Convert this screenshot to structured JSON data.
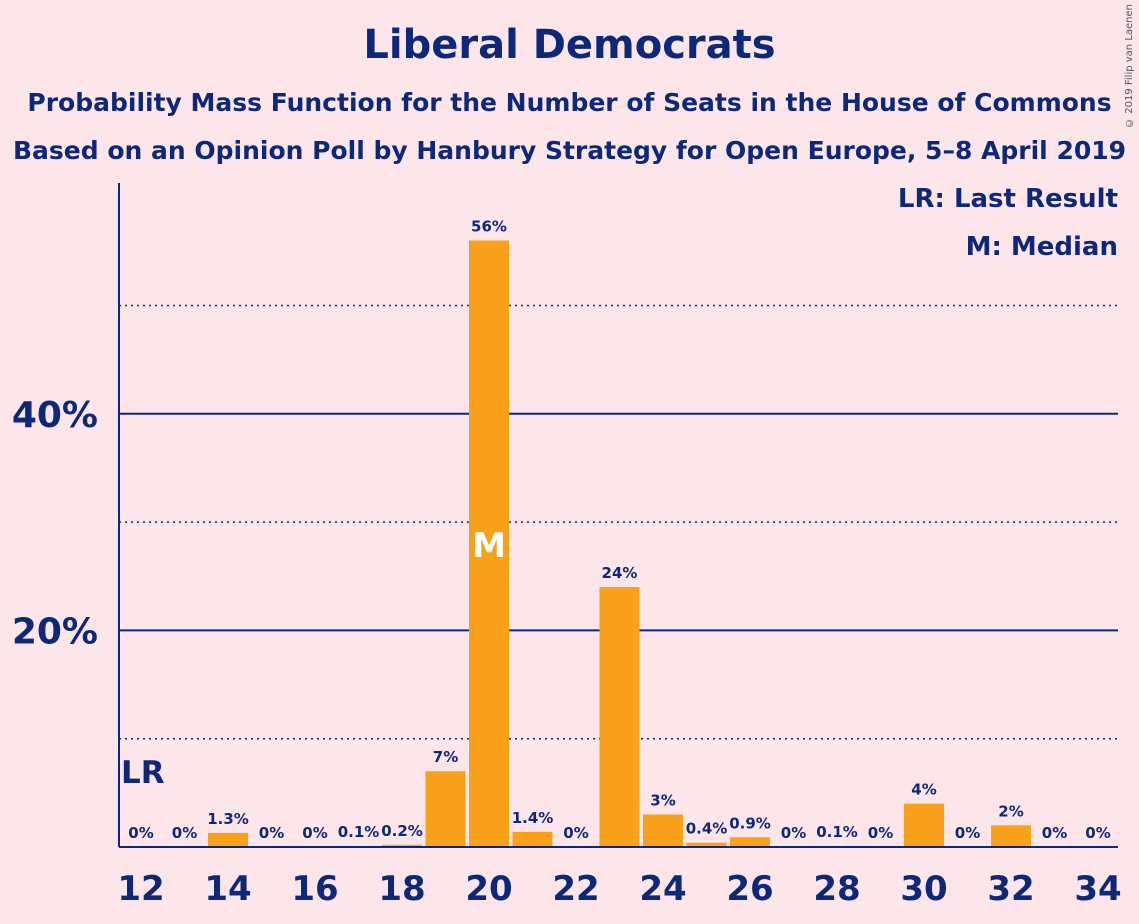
{
  "chart_data": {
    "type": "bar",
    "title": "Liberal Democrats",
    "subtitle": "Probability Mass Function for the Number of Seats in the House of Commons",
    "subtitle2": "Based on an Opinion Poll by Hanbury Strategy for Open Europe, 5–8 April 2019",
    "copyright": "© 2019 Filip van Laenen",
    "x": [
      12,
      13,
      14,
      15,
      16,
      17,
      18,
      19,
      20,
      21,
      22,
      23,
      24,
      25,
      26,
      27,
      28,
      29,
      30,
      31,
      32,
      33,
      34
    ],
    "values": [
      0,
      0,
      1.3,
      0,
      0,
      0.1,
      0.2,
      7,
      56,
      1.4,
      0,
      24,
      3,
      0.4,
      0.9,
      0,
      0.1,
      0,
      4,
      0,
      2,
      0,
      0
    ],
    "labels": [
      "0%",
      "0%",
      "1.3%",
      "0%",
      "0%",
      "0.1%",
      "0.2%",
      "7%",
      "56%",
      "1.4%",
      "0%",
      "24%",
      "3%",
      "0.4%",
      "0.9%",
      "0%",
      "0.1%",
      "0%",
      "4%",
      "0%",
      "2%",
      "0%",
      "0%"
    ],
    "x_ticks": [
      "12",
      "14",
      "16",
      "18",
      "20",
      "22",
      "24",
      "26",
      "28",
      "30",
      "32",
      "34"
    ],
    "y_ticks": [
      "20%",
      "40%"
    ],
    "ylim": [
      0,
      60
    ],
    "last_result_seat": 12,
    "last_result_marker": "LR",
    "median_seat": 20,
    "median_marker": "M",
    "legend": {
      "last_result": "LR: Last Result",
      "median": "M: Median"
    },
    "colors": {
      "bar": "#f9a11b",
      "text": "#0d2878",
      "background": "#fde6e9"
    }
  }
}
